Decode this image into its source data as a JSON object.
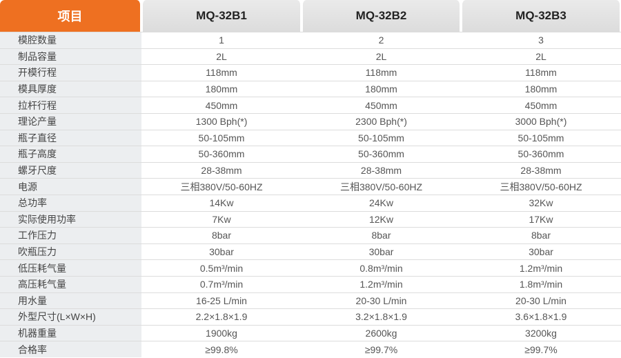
{
  "header": {
    "label": "项目",
    "models": [
      "MQ-32B1",
      "MQ-32B2",
      "MQ-32B3"
    ]
  },
  "colors": {
    "accent": "#ee7021",
    "label_bg": "#eceef0"
  },
  "rows": [
    {
      "label": "模腔数量",
      "values": [
        "1",
        "2",
        "3"
      ]
    },
    {
      "label": "制品容量",
      "values": [
        "2L",
        "2L",
        "2L"
      ]
    },
    {
      "label": "开模行程",
      "values": [
        "118mm",
        "118mm",
        "118mm"
      ]
    },
    {
      "label": "模具厚度",
      "values": [
        "180mm",
        "180mm",
        "180mm"
      ]
    },
    {
      "label": "拉杆行程",
      "values": [
        "450mm",
        "450mm",
        "450mm"
      ]
    },
    {
      "label": "理论产量",
      "values": [
        "1300 Bph(*)",
        "2300 Bph(*)",
        "3000 Bph(*)"
      ]
    },
    {
      "label": "瓶子直径",
      "values": [
        "50-105mm",
        "50-105mm",
        "50-105mm"
      ]
    },
    {
      "label": "瓶子高度",
      "values": [
        "50-360mm",
        "50-360mm",
        "50-360mm"
      ]
    },
    {
      "label": "螺牙尺度",
      "values": [
        "28-38mm",
        "28-38mm",
        "28-38mm"
      ]
    },
    {
      "label": "电源",
      "values": [
        "三相380V/50-60HZ",
        "三相380V/50-60HZ",
        "三相380V/50-60HZ"
      ]
    },
    {
      "label": "总功率",
      "values": [
        "14Kw",
        "24Kw",
        "32Kw"
      ]
    },
    {
      "label": "实际使用功率",
      "values": [
        "7Kw",
        "12Kw",
        "17Kw"
      ]
    },
    {
      "label": "工作压力",
      "values": [
        "8bar",
        "8bar",
        "8bar"
      ]
    },
    {
      "label": "吹瓶压力",
      "values": [
        "30bar",
        "30bar",
        "30bar"
      ]
    },
    {
      "label": "低压耗气量",
      "values": [
        "0.5m³/min",
        "0.8m³/min",
        "1.2m³/min"
      ]
    },
    {
      "label": "高压耗气量",
      "values": [
        "0.7m³/min",
        "1.2m³/min",
        "1.8m³/min"
      ]
    },
    {
      "label": "用水量",
      "values": [
        "16-25 L/min",
        "20-30 L/min",
        "20-30 L/min"
      ]
    },
    {
      "label": "外型尺寸(L×W×H)",
      "values": [
        "2.2×1.8×1.9",
        "3.2×1.8×1.9",
        "3.6×1.8×1.9"
      ]
    },
    {
      "label": "机器重量",
      "values": [
        "1900kg",
        "2600kg",
        "3200kg"
      ]
    },
    {
      "label": "合格率",
      "values": [
        "≥99.8%",
        "≥99.7%",
        "≥99.7%"
      ]
    }
  ]
}
